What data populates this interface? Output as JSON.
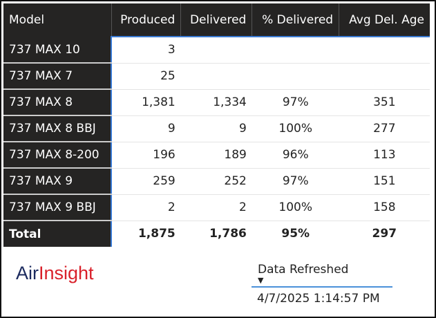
{
  "table": {
    "headers": [
      "Model",
      "Produced",
      "Delivered",
      "% Delivered",
      "Avg Del. Age"
    ],
    "rows": [
      [
        "737 MAX 10",
        "3",
        "",
        "",
        ""
      ],
      [
        "737 MAX 7",
        "25",
        "",
        "",
        ""
      ],
      [
        "737 MAX 8",
        "1,381",
        "1,334",
        "97%",
        "351"
      ],
      [
        "737 MAX 8 BBJ",
        "9",
        "9",
        "100%",
        "277"
      ],
      [
        "737 MAX 8-200",
        "196",
        "189",
        "96%",
        "113"
      ],
      [
        "737 MAX 9",
        "259",
        "252",
        "97%",
        "151"
      ],
      [
        "737 MAX 9 BBJ",
        "2",
        "2",
        "100%",
        "158"
      ]
    ],
    "total": [
      "Total",
      "1,875",
      "1,786",
      "95%",
      "297"
    ]
  },
  "logo": {
    "part1": "Air",
    "part2": "Insight",
    "colors": [
      "#1b2a5e",
      "#d9202a"
    ]
  },
  "slicer": {
    "label": "Data Refreshed",
    "value": "4/7/2025 1:14:57 PM",
    "icon": "dropdown-arrow-icon"
  }
}
